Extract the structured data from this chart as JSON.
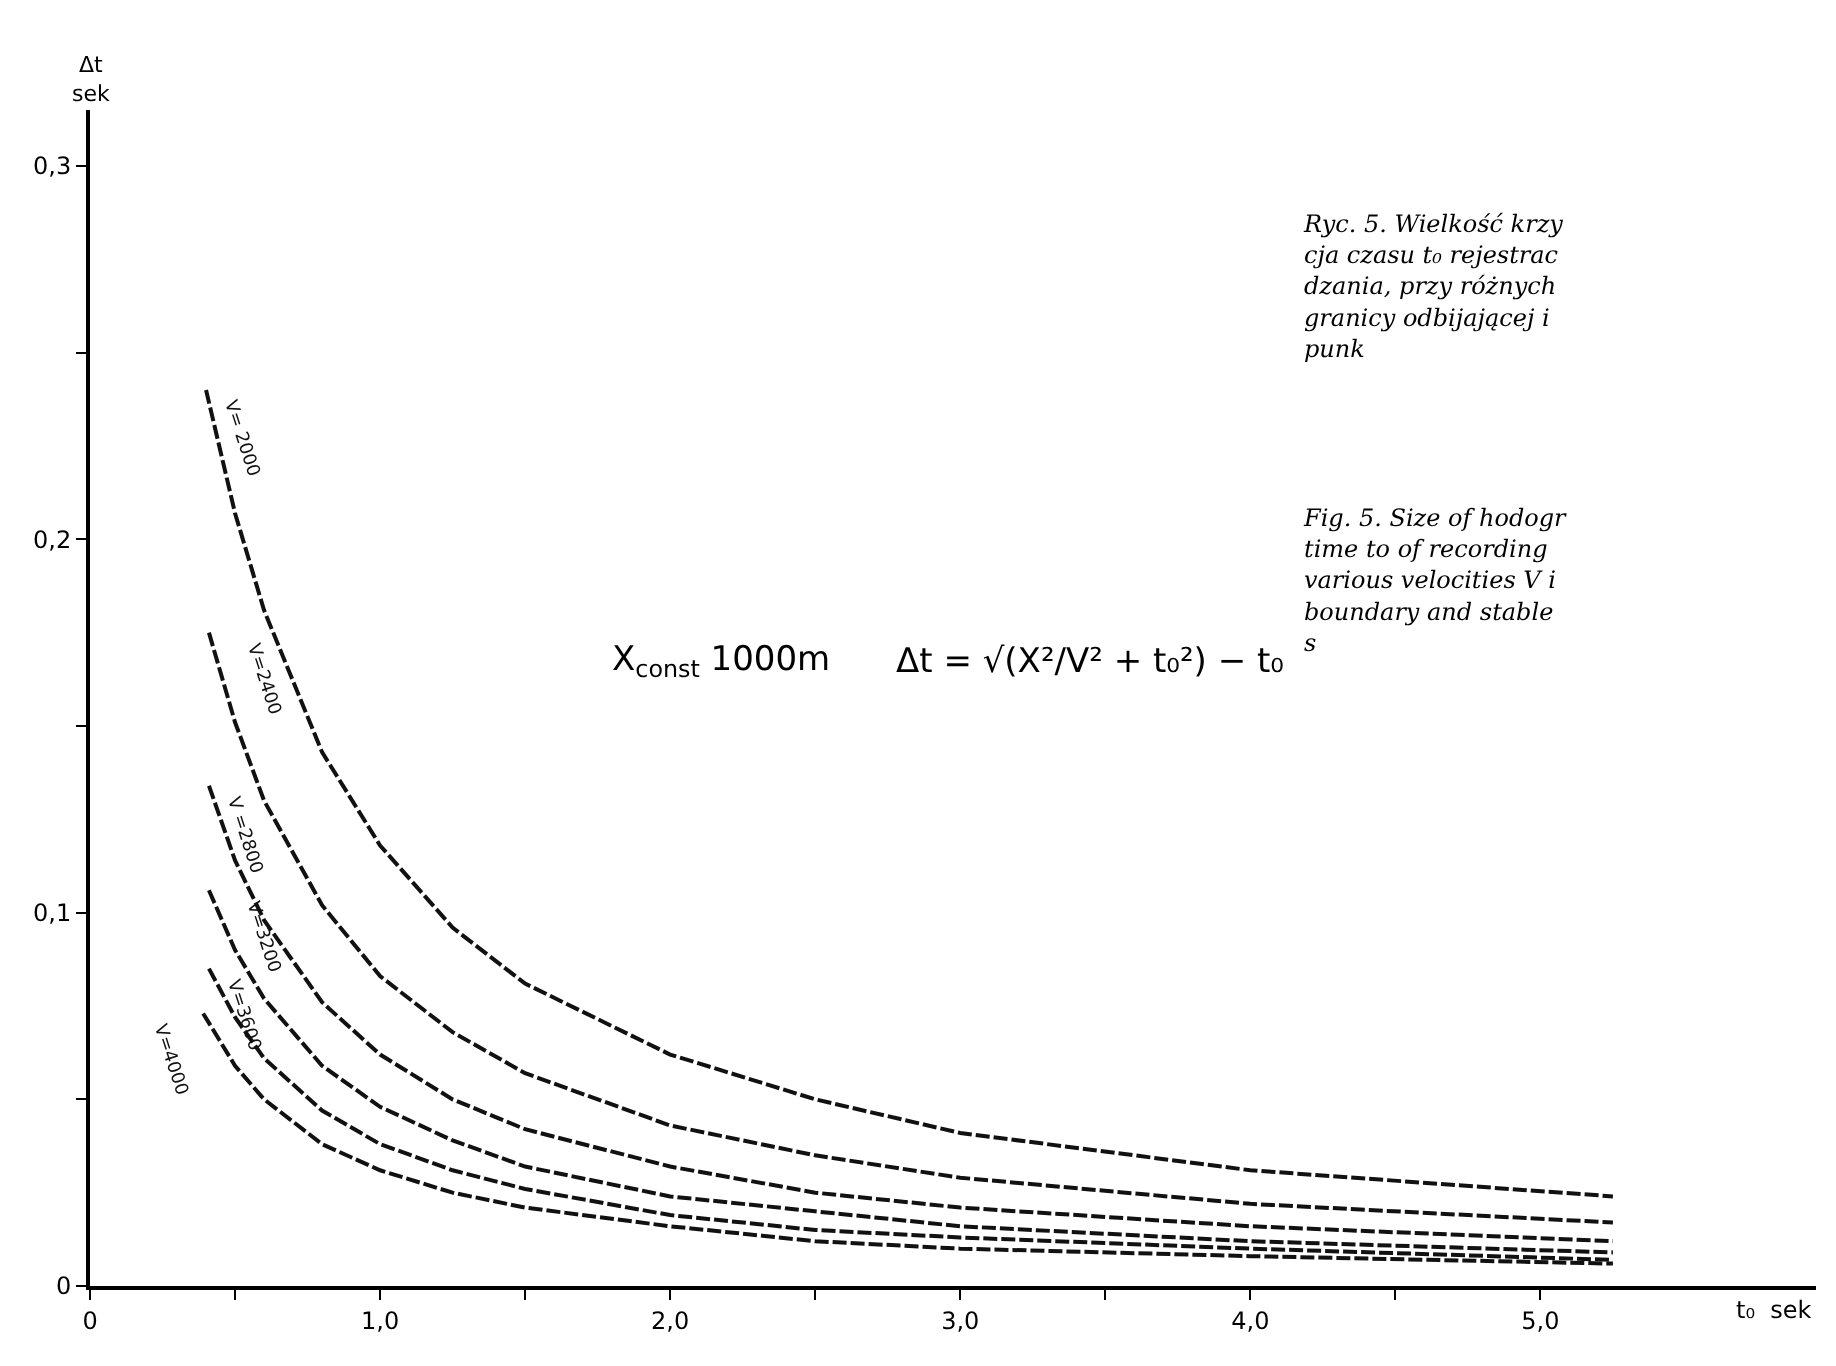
{
  "chart_data": {
    "type": "line",
    "xlabel": "t₀  sek",
    "ylabel": "Δt sek",
    "xlim": [
      0,
      5.95
    ],
    "ylim": [
      0,
      0.315
    ],
    "xticks": [
      0,
      {
        "value": 0.5,
        "label": null
      },
      {
        "value": 1,
        "label": "1,0"
      },
      {
        "value": 1.5,
        "label": null
      },
      {
        "value": 2,
        "label": "2,0"
      },
      {
        "value": 2.5,
        "label": null
      },
      {
        "value": 3,
        "label": "3,0"
      },
      {
        "value": 3.5,
        "label": null
      },
      {
        "value": 4,
        "label": "4,0"
      },
      {
        "value": 4.5,
        "label": null
      },
      {
        "value": 5,
        "label": "5,0"
      }
    ],
    "yticks": [
      0,
      {
        "value": 0.05,
        "label": null
      },
      {
        "value": 0.1,
        "label": "0,1"
      },
      {
        "value": 0.15,
        "label": null
      },
      {
        "value": 0.2,
        "label": "0,2"
      },
      {
        "value": 0.25,
        "label": null
      },
      {
        "value": 0.3,
        "label": "0,3"
      }
    ],
    "legend": false,
    "marker": "none",
    "line_style": "dashed",
    "series": [
      {
        "name": "V= 2000",
        "color": "#111111",
        "x": [
          0.4,
          0.5,
          0.6,
          0.8,
          1.0,
          1.25,
          1.5,
          2,
          2.5,
          3,
          4,
          5.25
        ],
        "values": [
          0.24,
          0.207,
          0.181,
          0.143,
          0.118,
          0.096,
          0.081,
          0.062,
          0.05,
          0.041,
          0.031,
          0.024
        ]
      },
      {
        "name": "V=2400",
        "color": "#111111",
        "x": [
          0.41,
          0.5,
          0.6,
          0.8,
          1.0,
          1.25,
          1.5,
          2,
          2.5,
          3,
          4,
          5.25
        ],
        "values": [
          0.175,
          0.151,
          0.13,
          0.102,
          0.083,
          0.068,
          0.057,
          0.043,
          0.035,
          0.029,
          0.022,
          0.017
        ]
      },
      {
        "name": "V =2800",
        "color": "#111111",
        "x": [
          0.41,
          0.5,
          0.6,
          0.8,
          1.0,
          1.25,
          1.5,
          2,
          2.5,
          3,
          4,
          5.25
        ],
        "values": [
          0.134,
          0.114,
          0.098,
          0.076,
          0.062,
          0.05,
          0.042,
          0.032,
          0.025,
          0.021,
          0.016,
          0.012
        ]
      },
      {
        "name": "V=3200",
        "color": "#111111",
        "x": [
          0.41,
          0.5,
          0.6,
          0.8,
          1.0,
          1.25,
          1.5,
          2,
          2.5,
          3,
          4,
          5.25
        ],
        "values": [
          0.106,
          0.09,
          0.077,
          0.059,
          0.048,
          0.039,
          0.032,
          0.024,
          0.02,
          0.016,
          0.012,
          0.009
        ]
      },
      {
        "name": "V=3600",
        "color": "#111111",
        "x": [
          0.41,
          0.5,
          0.6,
          0.8,
          1.0,
          1.25,
          1.5,
          2,
          2.5,
          3,
          4,
          5.25
        ],
        "values": [
          0.085,
          0.072,
          0.061,
          0.047,
          0.038,
          0.031,
          0.026,
          0.019,
          0.015,
          0.013,
          0.01,
          0.007
        ]
      },
      {
        "name": "V=4000",
        "color": "#111111",
        "x": [
          0.39,
          0.5,
          0.6,
          0.8,
          1.0,
          1.25,
          1.5,
          2,
          2.5,
          3,
          4,
          5.25
        ],
        "values": [
          0.073,
          0.059,
          0.05,
          0.038,
          0.031,
          0.025,
          0.021,
          0.016,
          0.012,
          0.01,
          0.008,
          0.006
        ]
      }
    ],
    "annotations": [
      "X$_{const}$ 1000m",
      "Δt = √(X²/V² + t₀²) − t₀",
      "Ryc. 5. Wielkość krzy\ncja czasu t₀ rejestrac\ndzania, przy różnych\ngranicy odbijającej i\npunk",
      "Fig. 5. Size of hodogr\ntime to of recording\nvarious velocities V i\nboundary and stable\ns"
    ]
  }
}
